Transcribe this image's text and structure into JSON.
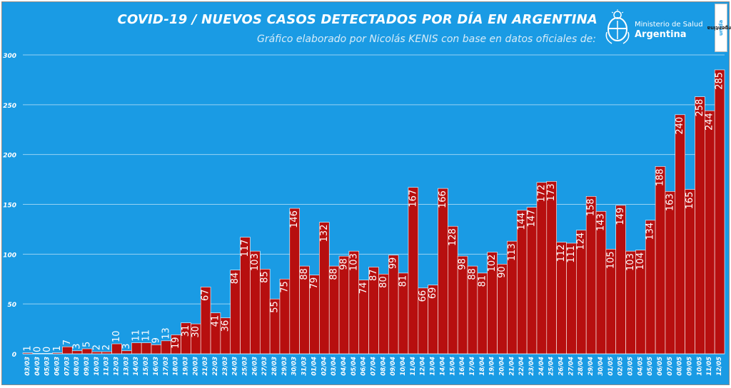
{
  "header": {
    "title": "COVID-19  /  NUEVOS CASOS DETECTADOS POR DÍA EN ARGENTINA",
    "subtitle": "Gráfico elaborado por Nicolás KENIS con base en datos oficiales de:"
  },
  "logo": {
    "line1": "Ministerio de Salud",
    "line2": "Argentina",
    "badge_main": "Argentina",
    "badge_accent": "unida"
  },
  "colors": {
    "background": "#1a9be4",
    "bar": "#b70f0f",
    "bar_border": "#ffffff",
    "text": "#ffffff"
  },
  "chart_data": {
    "type": "bar",
    "title": "COVID-19  /  NUEVOS CASOS DETECTADOS POR DÍA EN ARGENTINA",
    "xlabel": "",
    "ylabel": "",
    "ylim": [
      0,
      300
    ],
    "yticks": [
      0,
      50,
      100,
      150,
      200,
      250,
      300
    ],
    "grid": true,
    "legend": "none",
    "categories": [
      "03/03",
      "04/03",
      "05/03",
      "06/03",
      "07/03",
      "08/03",
      "09/03",
      "10/03",
      "11/03",
      "12/03",
      "13/03",
      "14/03",
      "15/03",
      "16/03",
      "17/03",
      "18/03",
      "19/03",
      "20/03",
      "21/03",
      "22/03",
      "23/03",
      "24/03",
      "25/03",
      "26/03",
      "27/03",
      "28/03",
      "29/03",
      "30/03",
      "31/03",
      "01/04",
      "02/04",
      "03/04",
      "04/04",
      "05/04",
      "06/04",
      "07/04",
      "08/04",
      "09/04",
      "10/04",
      "11/04",
      "12/04",
      "13/04",
      "14/04",
      "15/04",
      "16/04",
      "17/04",
      "18/04",
      "19/04",
      "20/04",
      "21/04",
      "22/04",
      "23/04",
      "24/04",
      "25/04",
      "26/04",
      "27/04",
      "28/04",
      "29/04",
      "30/04",
      "01/05",
      "02/05",
      "03/05",
      "04/05",
      "05/05",
      "06/05",
      "07/05",
      "08/05",
      "09/05",
      "10/05",
      "11/05",
      "12/05"
    ],
    "values": [
      1,
      0,
      0,
      1,
      7,
      3,
      5,
      2,
      2,
      10,
      3,
      11,
      11,
      9,
      13,
      19,
      31,
      30,
      67,
      41,
      36,
      84,
      117,
      103,
      85,
      55,
      75,
      146,
      88,
      79,
      132,
      88,
      98,
      103,
      74,
      87,
      80,
      99,
      81,
      167,
      66,
      69,
      166,
      128,
      98,
      88,
      81,
      102,
      90,
      113,
      144,
      147,
      172,
      173,
      112,
      111,
      124,
      158,
      143,
      105,
      149,
      103,
      104,
      134,
      188,
      163,
      240,
      165,
      258,
      244,
      285
    ]
  }
}
